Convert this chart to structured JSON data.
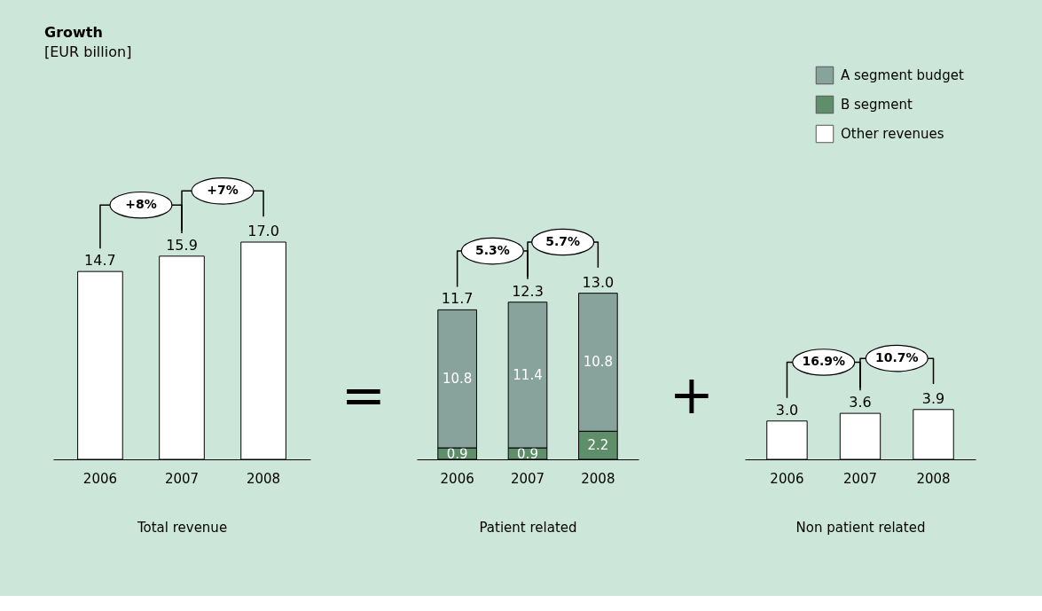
{
  "chart_data": [
    {
      "type": "bar",
      "title": "Growth",
      "subtitle": "[EUR billion]",
      "xlabel": "Total revenue",
      "categories": [
        "2006",
        "2007",
        "2008"
      ],
      "series": [
        {
          "color": "#ffffff",
          "values": [
            14.7,
            15.9,
            17.0
          ],
          "value_labels": [
            "14.7",
            "15.9",
            "17.0"
          ]
        }
      ],
      "tick_labels": "x",
      "annotations": [
        "+8%",
        "+7%"
      ]
    },
    {
      "type": "other",
      "annotations": [
        "="
      ]
    },
    {
      "type": "bar",
      "xlabel": "Patient related",
      "categories": [
        "2006",
        "2007",
        "2008"
      ],
      "stacked": true,
      "series": [
        {
          "name": "B segment",
          "color": "#5f8f6a",
          "values": [
            0.9,
            0.9,
            2.2
          ],
          "value_labels": [
            "0.9",
            "0.9",
            "2.2"
          ]
        },
        {
          "name": "A segment budget",
          "color": "#87a39c",
          "values": [
            10.8,
            11.4,
            10.8
          ],
          "value_labels": [
            "10.8",
            "11.4",
            "10.8"
          ]
        }
      ],
      "totals": [
        "11.7",
        "12.3",
        "13.0"
      ],
      "tick_labels": "x",
      "annotations": [
        "5.3%",
        "5.7%"
      ],
      "legend": "top right"
    },
    {
      "type": "other",
      "annotations": [
        "+"
      ]
    },
    {
      "type": "bar",
      "xlabel": "Non patient related",
      "categories": [
        "2006",
        "2007",
        "2008"
      ],
      "series": [
        {
          "name": "Other revenues",
          "color": "#ffffff",
          "values": [
            3.0,
            3.6,
            3.9
          ],
          "value_labels": [
            "3.0",
            "3.6",
            "3.9"
          ]
        }
      ],
      "tick_labels": "x",
      "annotations": [
        "16.9%",
        "10.7%"
      ],
      "legend": "top right"
    }
  ]
}
